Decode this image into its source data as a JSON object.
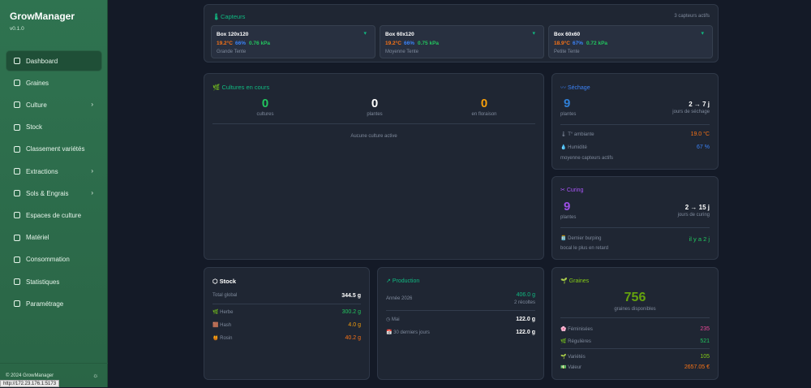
{
  "sidebar": {
    "title": "GrowManager",
    "version": "v0.1.0",
    "items": [
      {
        "label": "Dashboard"
      },
      {
        "label": "Graines"
      },
      {
        "label": "Culture"
      },
      {
        "label": "Stock"
      },
      {
        "label": "Classement variétés"
      },
      {
        "label": "Extractions"
      },
      {
        "label": "Sols & Engrais"
      },
      {
        "label": "Espaces de culture"
      },
      {
        "label": "Matériel"
      },
      {
        "label": "Consommation"
      },
      {
        "label": "Statistiques"
      },
      {
        "label": "Paramétrage"
      }
    ],
    "footer": "© 2024 GrowManager",
    "status_url": "http://172.23.176.1:5173"
  },
  "sensors": {
    "title": "Capteurs",
    "count": "3 capteurs actifs",
    "boxes": [
      {
        "name": "Box 120x120",
        "temp": "19.2°C",
        "humidity": "66%",
        "vpd": "0.76 kPa",
        "location": "Grande Tente"
      },
      {
        "name": "Box 60x120",
        "temp": "19.2°C",
        "humidity": "66%",
        "vpd": "0.75 kPa",
        "location": "Moyenne Tente"
      },
      {
        "name": "Box 60x60",
        "temp": "18.9°C",
        "humidity": "67%",
        "vpd": "0.72 kPa",
        "location": "Petite Tente"
      }
    ]
  },
  "cultures": {
    "title": "Cultures en cours",
    "stats": [
      {
        "value": "0",
        "label": "cultures"
      },
      {
        "value": "0",
        "label": "plantes"
      },
      {
        "value": "0",
        "label": "en floraison"
      }
    ],
    "empty": "Aucune culture active"
  },
  "drying": {
    "title": "Séchage",
    "count": "9",
    "count_label": "plantes",
    "range": "2 → 7 j",
    "range_label": "jours de séchage",
    "rows": [
      {
        "label": "T° ambiante",
        "value": "19.0 °C"
      },
      {
        "label": "Humidité",
        "value": "67 %"
      }
    ],
    "note": "moyenne capteurs actifs"
  },
  "curing": {
    "title": "Curing",
    "count": "9",
    "count_label": "plantes",
    "range": "2 → 15 j",
    "range_label": "jours de curing",
    "row": {
      "label": "Dernier burping",
      "value": "il y a 2 j"
    },
    "note": "bocal le plus en retard"
  },
  "stock": {
    "title": "Stock",
    "total_label": "Total global",
    "total": "344.5 g",
    "rows": [
      {
        "label": "Herbe",
        "value": "300.2 g"
      },
      {
        "label": "Hash",
        "value": "4.0 g"
      },
      {
        "label": "Rosin",
        "value": "40.2 g"
      }
    ]
  },
  "production": {
    "title": "Production",
    "year_label": "Année 2026",
    "year_value": "406.0 g",
    "harvests": "2 récoltes",
    "rows": [
      {
        "label": "Mai",
        "value": "122.0 g"
      },
      {
        "label": "30 derniers jours",
        "value": "122.0 g"
      }
    ]
  },
  "seeds": {
    "title": "Graines",
    "total": "756",
    "total_label": "graines disponibles",
    "rows": [
      {
        "label": "Féminisées",
        "value": "235"
      },
      {
        "label": "Régulières",
        "value": "521"
      },
      {
        "label": "Variétés",
        "value": "105"
      },
      {
        "label": "Valeur",
        "value": "2657.05 €"
      }
    ]
  }
}
